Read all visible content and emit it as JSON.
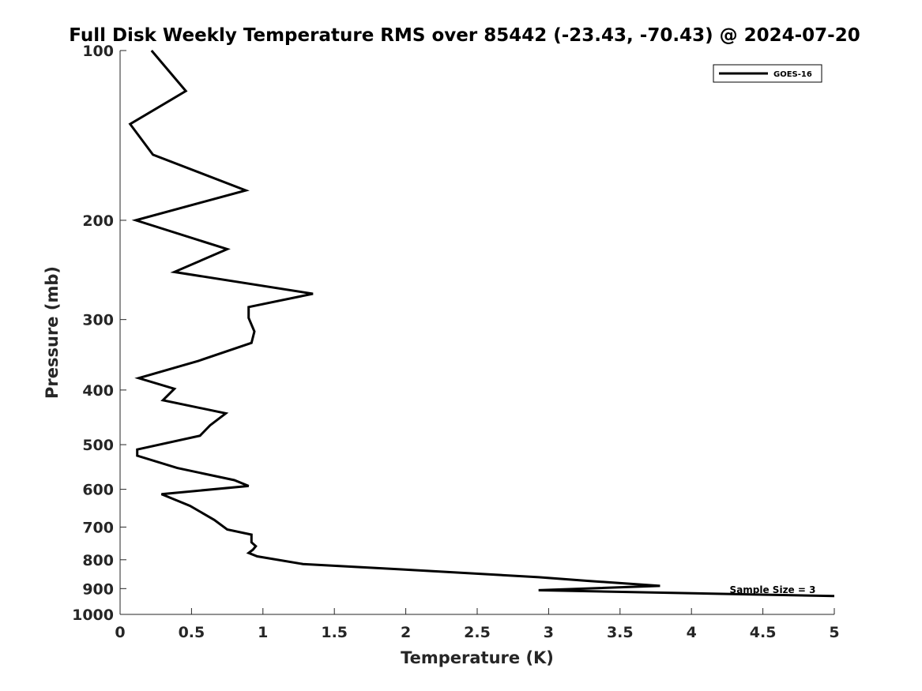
{
  "chart_data": {
    "type": "line",
    "title": "Full Disk Weekly Temperature RMS over 85442 (-23.43, -70.43) @ 2024-07-20",
    "xlabel": "Temperature (K)",
    "ylabel": "Pressure (mb)",
    "xlim": [
      0,
      5
    ],
    "ylim": [
      100,
      1000
    ],
    "y_scale": "log",
    "y_reversed": true,
    "x_ticks": [
      "0",
      "0.5",
      "1",
      "1.5",
      "2",
      "2.5",
      "3",
      "3.5",
      "4",
      "4.5",
      "5"
    ],
    "y_ticks": [
      "100",
      "200",
      "300",
      "400",
      "500",
      "600",
      "700",
      "800",
      "900",
      "1000"
    ],
    "grid": false,
    "legend": {
      "position": "top-right",
      "entries": [
        "GOES-16"
      ]
    },
    "annotation": "Sample Size = 3",
    "series": [
      {
        "name": "GOES-16",
        "color": "#000000",
        "points": [
          [
            0.22,
            100
          ],
          [
            0.46,
            118
          ],
          [
            0.07,
            135
          ],
          [
            0.23,
            153
          ],
          [
            0.88,
            177
          ],
          [
            0.11,
            200
          ],
          [
            0.75,
            225
          ],
          [
            0.38,
            247
          ],
          [
            1.35,
            270
          ],
          [
            0.9,
            285
          ],
          [
            0.9,
            298
          ],
          [
            0.94,
            315
          ],
          [
            0.92,
            330
          ],
          [
            0.55,
            355
          ],
          [
            0.13,
            381
          ],
          [
            0.38,
            398
          ],
          [
            0.3,
            417
          ],
          [
            0.74,
            440
          ],
          [
            0.63,
            462
          ],
          [
            0.56,
            482
          ],
          [
            0.12,
            510
          ],
          [
            0.12,
            523
          ],
          [
            0.4,
            550
          ],
          [
            0.8,
            578
          ],
          [
            0.9,
            592
          ],
          [
            0.29,
            612
          ],
          [
            0.49,
            642
          ],
          [
            0.66,
            680
          ],
          [
            0.75,
            707
          ],
          [
            0.92,
            722
          ],
          [
            0.92,
            745
          ],
          [
            0.95,
            757
          ],
          [
            0.93,
            768
          ],
          [
            0.9,
            778
          ],
          [
            0.96,
            789
          ],
          [
            1.28,
            814
          ],
          [
            1.97,
            832
          ],
          [
            2.93,
            859
          ],
          [
            3.27,
            872
          ],
          [
            3.78,
            890
          ],
          [
            2.93,
            906
          ],
          [
            5.0,
            928
          ]
        ]
      }
    ]
  }
}
